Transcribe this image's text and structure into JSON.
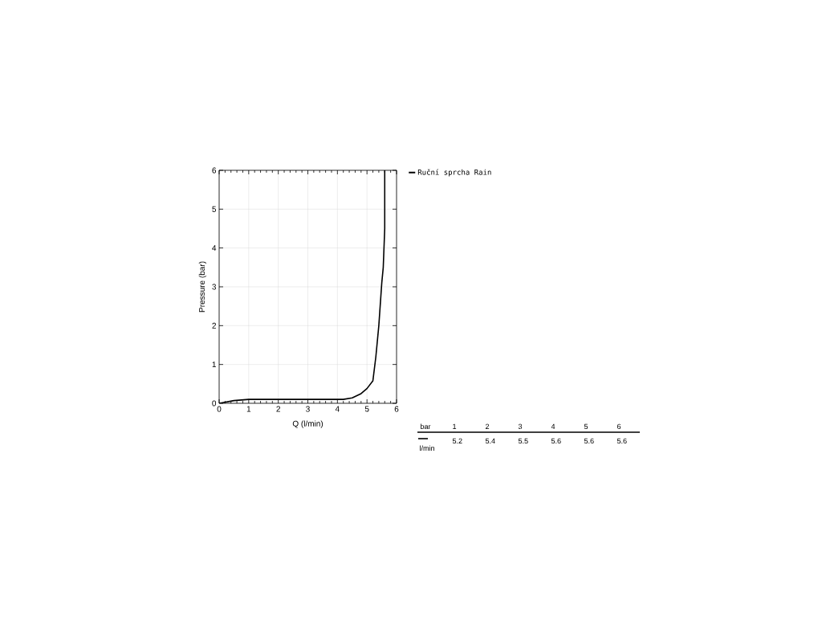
{
  "chart_data": {
    "type": "line",
    "xlabel": "Q (l/min)",
    "ylabel": "Pressure (bar)",
    "xlim": [
      0,
      6
    ],
    "ylim": [
      0,
      6
    ],
    "xticks": [
      0,
      1,
      2,
      3,
      4,
      5,
      6
    ],
    "yticks": [
      0,
      1,
      2,
      3,
      4,
      5,
      6
    ],
    "grid": true,
    "legend": "right",
    "series": [
      {
        "name": "Ruční sprcha Rain",
        "color": "#000000",
        "x": [
          0,
          0.5,
          1,
          2,
          3,
          4,
          4.2,
          4.5,
          4.8,
          5.0,
          5.2,
          5.3,
          5.4,
          5.5,
          5.55,
          5.6,
          5.6
        ],
        "values": [
          0,
          0.07,
          0.1,
          0.1,
          0.1,
          0.1,
          0.1,
          0.14,
          0.25,
          0.38,
          0.58,
          1.2,
          2,
          3.1,
          3.5,
          4.5,
          6
        ]
      }
    ],
    "annotations": [
      "bar",
      "l/min",
      "1",
      "2",
      "3",
      "4",
      "5",
      "6",
      "5.2",
      "5.4",
      "5.5",
      "5.6",
      "5.6",
      "5.6"
    ]
  }
}
